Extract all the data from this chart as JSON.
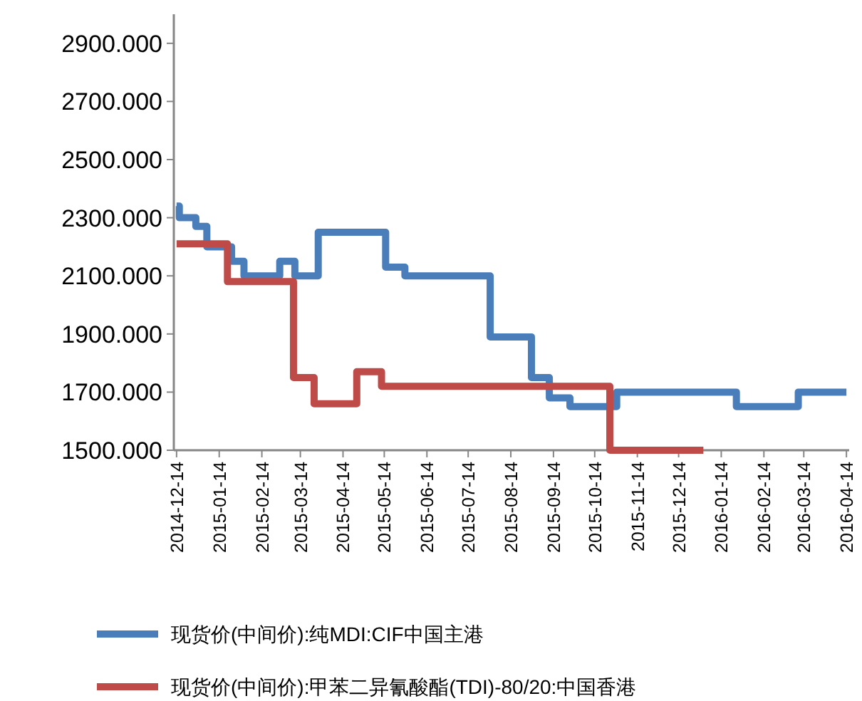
{
  "chart_data": {
    "type": "step",
    "xlim": [
      "2014-12-12",
      "2016-04-16"
    ],
    "xticks": [
      "2014-12-14",
      "2015-01-14",
      "2015-02-14",
      "2015-03-14",
      "2015-04-14",
      "2015-05-14",
      "2015-06-14",
      "2015-07-14",
      "2015-08-14",
      "2015-09-14",
      "2015-10-14",
      "2015-11-14",
      "2015-12-14",
      "2016-01-14",
      "2016-02-14",
      "2016-03-14",
      "2016-04-14"
    ],
    "ylim": [
      1500,
      3000
    ],
    "yticks": [
      {
        "value": 1500,
        "label": "1500.000"
      },
      {
        "value": 1700,
        "label": "1700.000"
      },
      {
        "value": 1900,
        "label": "1900.000"
      },
      {
        "value": 2100,
        "label": "2100.000"
      },
      {
        "value": 2300,
        "label": "2300.000"
      },
      {
        "value": 2500,
        "label": "2500.000"
      },
      {
        "value": 2700,
        "label": "2700.000"
      },
      {
        "value": 2900,
        "label": "2900.000"
      }
    ],
    "grid": false,
    "legend": "bottom",
    "line_style": "solid",
    "marker": "none",
    "series": [
      {
        "name": "现货价(中间价):纯MDI:CIF中国主港",
        "color": "#4a7ebb",
        "x": [
          "2014-12-14",
          "2014-12-16",
          "2014-12-28",
          "2015-01-05",
          "2015-01-23",
          "2015-02-01",
          "2015-02-27",
          "2015-03-10",
          "2015-03-27",
          "2015-05-15",
          "2015-05-29",
          "2015-07-30",
          "2015-08-29",
          "2015-09-11",
          "2015-09-26",
          "2015-10-30",
          "2016-01-25",
          "2016-03-10",
          "2016-04-14"
        ],
        "values": [
          2340,
          2300,
          2270,
          2200,
          2150,
          2100,
          2150,
          2100,
          2250,
          2130,
          2100,
          1890,
          1750,
          1680,
          1650,
          1700,
          1650,
          1700,
          1700
        ]
      },
      {
        "name": "现货价(中间价):甲苯二异氰酸酯(TDI)-80/20:中国香港",
        "color": "#be4b48",
        "x": [
          "2014-12-14",
          "2015-01-20",
          "2015-03-09",
          "2015-03-24",
          "2015-04-24",
          "2015-05-12",
          "2015-10-25",
          "2016-01-01"
        ],
        "values": [
          2210,
          2080,
          1750,
          1660,
          1770,
          1720,
          1500,
          1500
        ]
      }
    ]
  }
}
